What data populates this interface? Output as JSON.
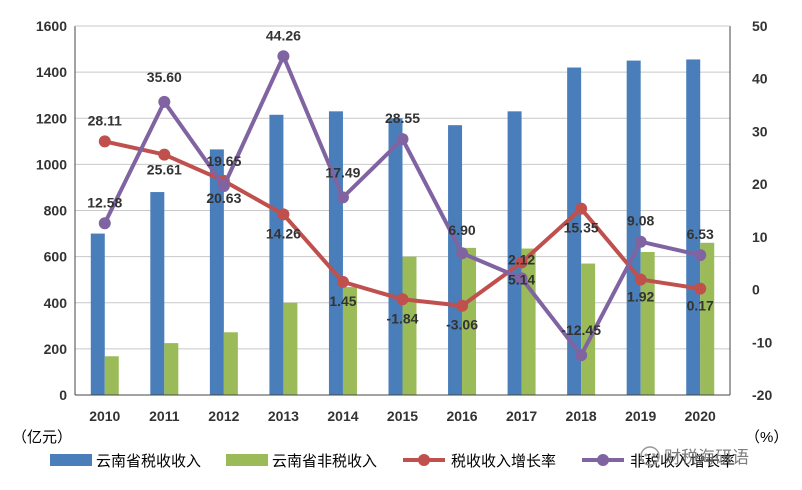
{
  "chart_data": {
    "type": "bar+line",
    "categories": [
      "2010",
      "2011",
      "2012",
      "2013",
      "2014",
      "2015",
      "2016",
      "2017",
      "2018",
      "2019",
      "2020"
    ],
    "bar_series": [
      {
        "name": "云南省税收收入",
        "color": "#4a7ebb",
        "values": [
          700,
          880,
          1065,
          1215,
          1230,
          1200,
          1170,
          1230,
          1420,
          1450,
          1455
        ]
      },
      {
        "name": "云南省非税收入",
        "color": "#9bbb59",
        "values": [
          168,
          225,
          272,
          400,
          468,
          600,
          638,
          635,
          570,
          620,
          660
        ]
      }
    ],
    "line_series": [
      {
        "name": "税收收入增长率",
        "color": "#c0504d",
        "values": [
          28.11,
          25.61,
          20.63,
          14.26,
          1.45,
          -1.84,
          -3.06,
          5.14,
          15.35,
          1.92,
          0.17
        ]
      },
      {
        "name": "非税收入增长率",
        "color": "#8064a2",
        "values": [
          12.58,
          35.6,
          19.65,
          44.26,
          17.49,
          28.55,
          6.9,
          2.12,
          -12.45,
          9.08,
          6.53
        ]
      }
    ],
    "line_labels": {
      "red": [
        "28.11",
        "25.61",
        "20.63",
        "14.26",
        "1.45",
        "-1.84",
        "-3.06",
        "5.14",
        "15.35",
        "1.92",
        "0.17"
      ],
      "purple": [
        "12.58",
        "35.60",
        "19.65",
        "44.26",
        "17.49",
        "28.55",
        "6.90",
        "2.12",
        "-12.45",
        "9.08",
        "6.53"
      ]
    },
    "y_left": {
      "label": "（亿元）",
      "min": 0,
      "max": 1600,
      "ticks": [
        "0",
        "200",
        "400",
        "600",
        "800",
        "1000",
        "1200",
        "1400",
        "1600"
      ]
    },
    "y_right": {
      "label": "（%）",
      "min": -20,
      "max": 50,
      "ticks": [
        "-20",
        "-10",
        "0",
        "10",
        "20",
        "30",
        "40",
        "50"
      ]
    },
    "grid": "horizontal",
    "legend_position": "bottom"
  },
  "watermark": "财税海研语"
}
